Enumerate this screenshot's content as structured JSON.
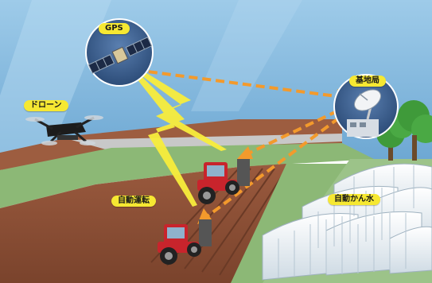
{
  "labels": {
    "gps": "GPS",
    "base_station": "基地局",
    "drone": "ドローン",
    "autonomous_driving": "自動運転",
    "auto_irrigation": "自動かん水"
  },
  "colors": {
    "sky": "#8bbfe2",
    "soil": "#8a4e35",
    "grass": "#8cb876",
    "signal_arrow": "#f39a2c",
    "gps_beam": "#f8ed3c",
    "label_bg": "#f6e832",
    "tractor": "#c8242c",
    "greenhouse": "#e7eef3",
    "tree": "#3f9a3a",
    "circle_bg": "#3e5f8c"
  },
  "icons": [
    "satellite-icon",
    "dish-antenna-icon",
    "drone-icon",
    "tractor-icon",
    "greenhouse-icon",
    "tree-icon"
  ]
}
